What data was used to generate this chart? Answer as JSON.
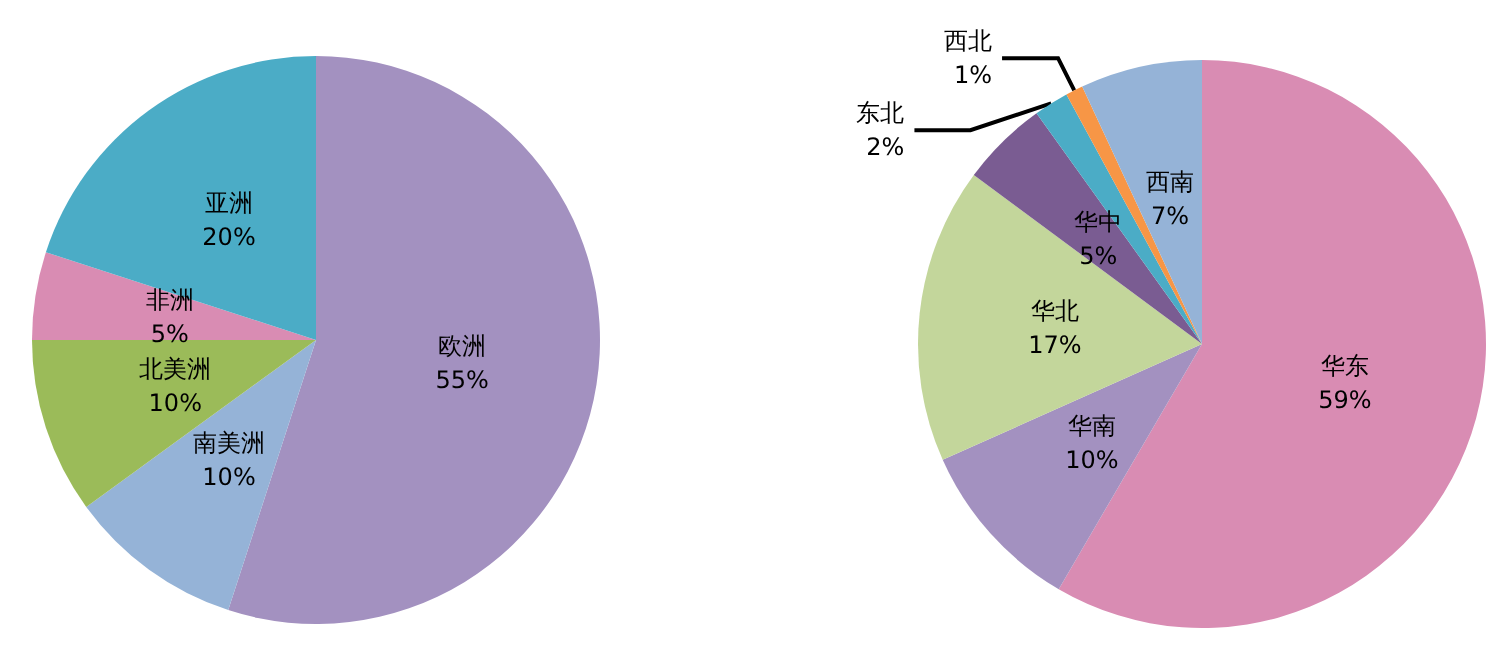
{
  "chart_data": [
    {
      "type": "pie",
      "categories": [
        "欧洲",
        "南美洲",
        "北美洲",
        "非洲",
        "亚洲"
      ],
      "values": [
        55,
        10,
        10,
        5,
        20
      ],
      "value_labels": [
        "55%",
        "10%",
        "10%",
        "5%",
        "20%"
      ],
      "colors": [
        "#a391c0",
        "#95b3d7",
        "#9bbb59",
        "#d98cb3",
        "#4bacc6"
      ]
    },
    {
      "type": "pie",
      "categories": [
        "华东",
        "华南",
        "华北",
        "华中",
        "东北",
        "西北",
        "西南"
      ],
      "values": [
        59,
        10,
        17,
        5,
        2,
        1,
        7
      ],
      "value_labels": [
        "59%",
        "10%",
        "17%",
        "5%",
        "2%",
        "1%",
        "7%"
      ],
      "colors": [
        "#d98cb3",
        "#a391c0",
        "#c3d69b",
        "#7a5c92",
        "#4bacc6",
        "#f79646",
        "#95b3d7"
      ]
    }
  ]
}
